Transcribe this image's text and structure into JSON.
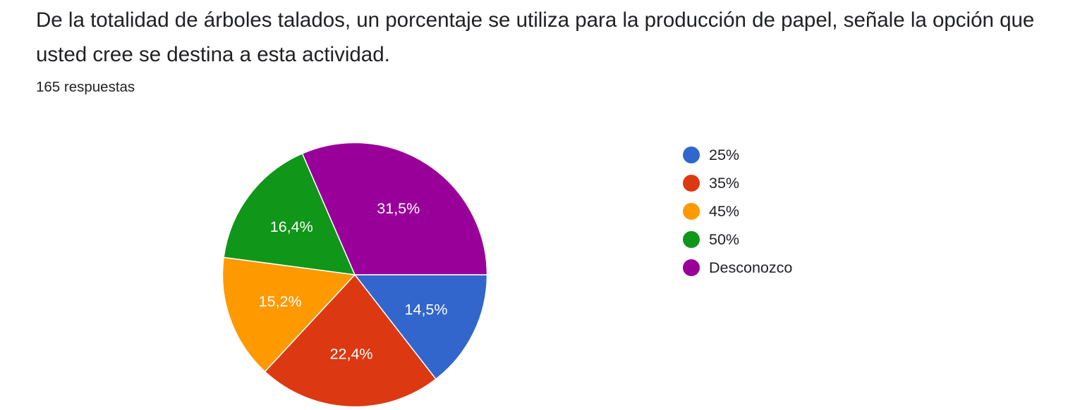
{
  "question": {
    "title": "De la totalidad de árboles talados, un porcentaje se utiliza para la producción de papel, señale la opción que usted cree se destina a esta actividad.",
    "response_count": "165 respuestas"
  },
  "chart_data": {
    "type": "pie",
    "title": "",
    "start": "3 o'clock, clockwise",
    "categories": [
      "25%",
      "35%",
      "45%",
      "50%",
      "Desconozco"
    ],
    "values": [
      14.5,
      22.4,
      15.2,
      16.4,
      31.5
    ],
    "labels": [
      "14,5%",
      "22,4%",
      "15,2%",
      "16,4%",
      "31,5%"
    ],
    "colors": [
      "#3366CC",
      "#DC3912",
      "#FF9900",
      "#109618",
      "#990099"
    ],
    "legend_position": "right"
  }
}
